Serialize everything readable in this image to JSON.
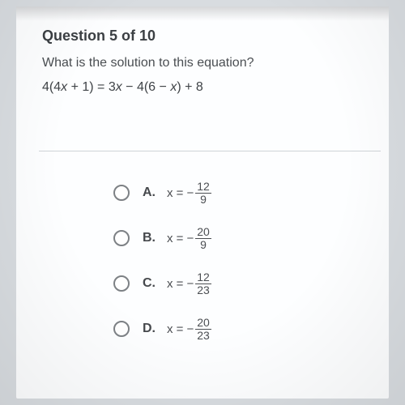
{
  "question": {
    "header": "Question 5 of 10",
    "prompt": "What is the solution to this equation?",
    "equation_html": "4(4x + 1) = 3x − 4(6 − x) + 8"
  },
  "options": [
    {
      "letter": "A.",
      "numerator": "12",
      "denominator": "9"
    },
    {
      "letter": "B.",
      "numerator": "20",
      "denominator": "9"
    },
    {
      "letter": "C.",
      "numerator": "12",
      "denominator": "23"
    },
    {
      "letter": "D.",
      "numerator": "20",
      "denominator": "23"
    }
  ],
  "style": {
    "text_color": "#4a4e52",
    "title_color": "#3b3f43",
    "radio_border": "#7d8185",
    "divider_color": "#cfd3d7",
    "bg": "#fdfeff",
    "body_bg": "#d8dce0"
  }
}
